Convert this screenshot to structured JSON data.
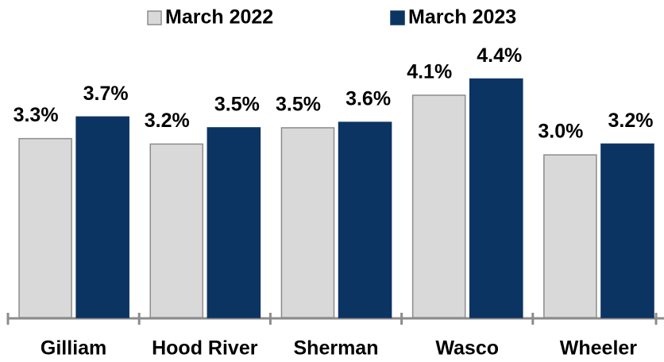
{
  "chart_data": {
    "type": "bar",
    "categories": [
      "Gilliam",
      "Hood River",
      "Sherman",
      "Wasco",
      "Wheeler"
    ],
    "series": [
      {
        "name": "March 2022",
        "color": "#d9d9d9",
        "values": [
          3.3,
          3.2,
          3.5,
          4.1,
          3.0
        ],
        "value_labels": [
          "3.3%",
          "3.2%",
          "3.5%",
          "4.1%",
          "3.0%"
        ]
      },
      {
        "name": "March 2023",
        "color": "#0c3463",
        "values": [
          3.7,
          3.5,
          3.6,
          4.4,
          3.2
        ],
        "value_labels": [
          "3.7%",
          "3.5%",
          "3.6%",
          "4.4%",
          "3.2%"
        ]
      }
    ],
    "ylim": [
      0,
      5
    ],
    "legend": "top"
  }
}
